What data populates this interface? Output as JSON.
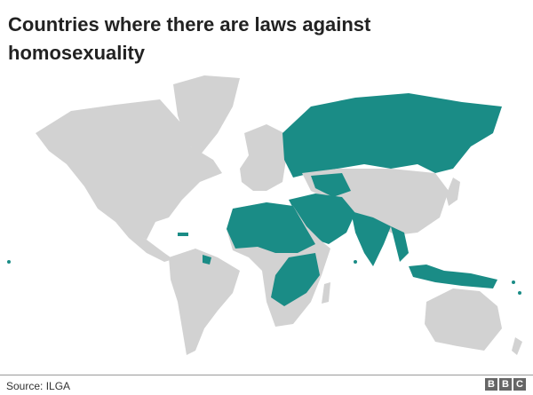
{
  "title": "Countries where there are laws against homosexuality",
  "source": "Source:  ILGA",
  "logo": "BBC",
  "colors": {
    "criminalised": "#1a8c86",
    "other": "#d2d2d2"
  },
  "highlighted_regions": [
    "Russia",
    "Central Asia",
    "Middle East",
    "North & Central Africa",
    "East Africa",
    "South Asia",
    "Indonesia",
    "Malaysia",
    "Caribbean",
    "Guyana",
    "Pacific islands"
  ]
}
